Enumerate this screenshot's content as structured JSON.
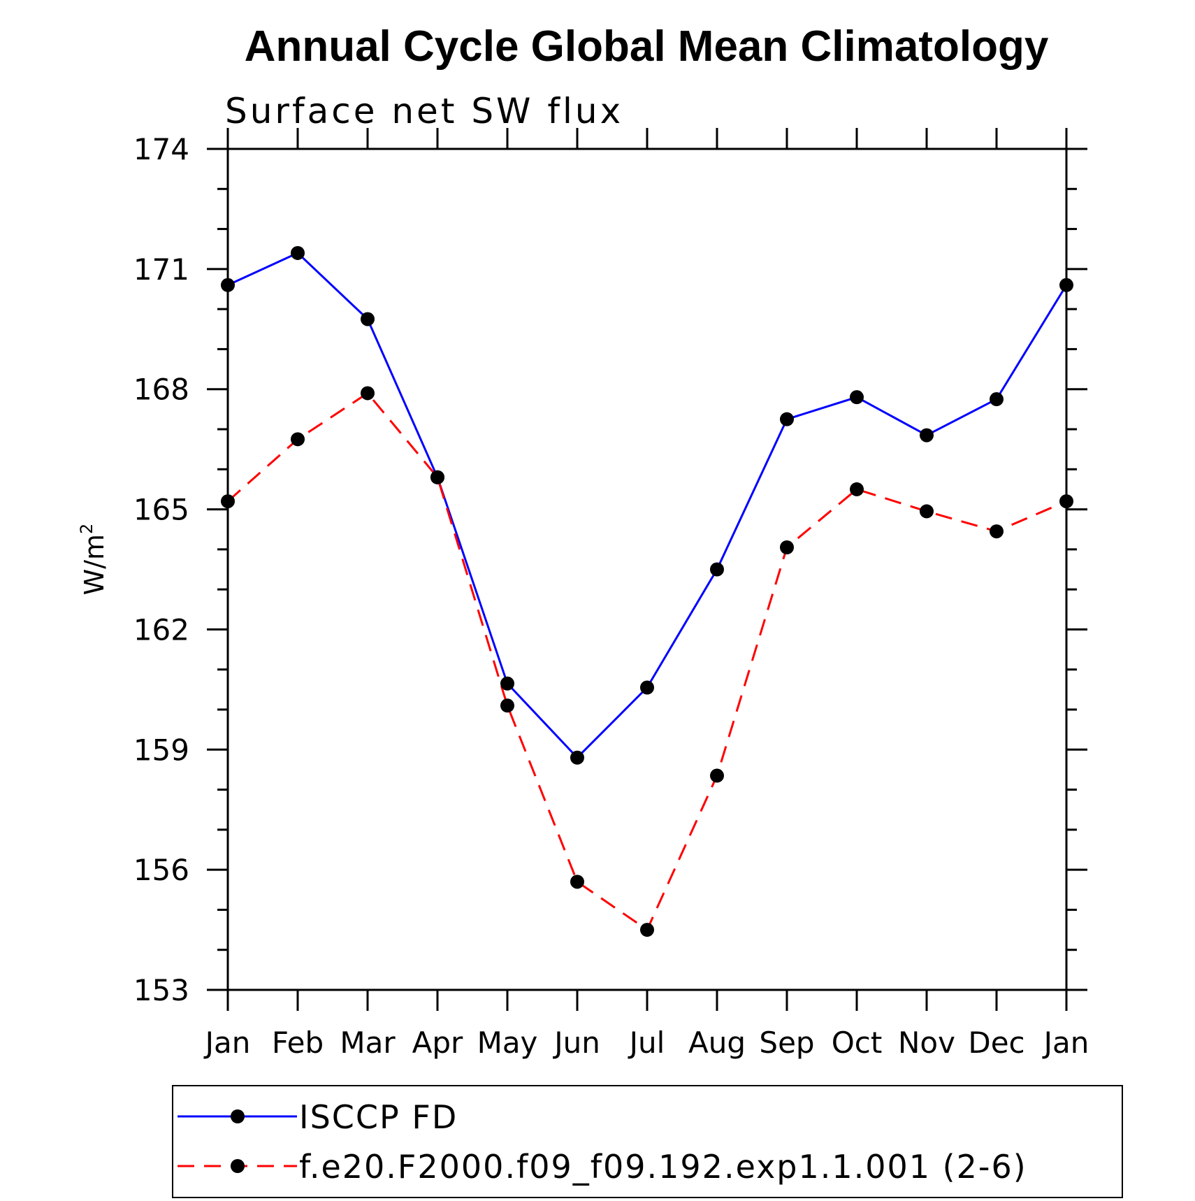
{
  "chart_data": {
    "type": "line",
    "title": "Annual Cycle Global Mean Climatology",
    "subtitle": "Surface net SW flux",
    "ylabel": "W/m",
    "ylabel_superscript": "2",
    "xlabel": "",
    "categories": [
      "Jan",
      "Feb",
      "Mar",
      "Apr",
      "May",
      "Jun",
      "Jul",
      "Aug",
      "Sep",
      "Oct",
      "Nov",
      "Dec",
      "Jan"
    ],
    "ylim": [
      153,
      174
    ],
    "yticks": [
      "153",
      "156",
      "159",
      "162",
      "165",
      "168",
      "171",
      "174"
    ],
    "grid": false,
    "legend_position": "bottom",
    "series": [
      {
        "name": "ISCCP FD",
        "color": "#0000ff",
        "line_style": "solid",
        "marker": "filled-circle",
        "values": [
          170.6,
          171.4,
          169.75,
          165.8,
          160.65,
          158.8,
          160.55,
          163.5,
          167.25,
          167.8,
          166.85,
          167.75,
          170.6
        ]
      },
      {
        "name": "f.e20.F2000.f09_f09.192.exp1.1.001 (2-6)",
        "color": "#ff0000",
        "line_style": "dashed",
        "marker": "filled-circle",
        "values": [
          165.2,
          166.75,
          167.9,
          165.8,
          160.1,
          155.7,
          154.5,
          158.35,
          164.05,
          165.5,
          164.95,
          164.45,
          165.2
        ]
      }
    ]
  }
}
